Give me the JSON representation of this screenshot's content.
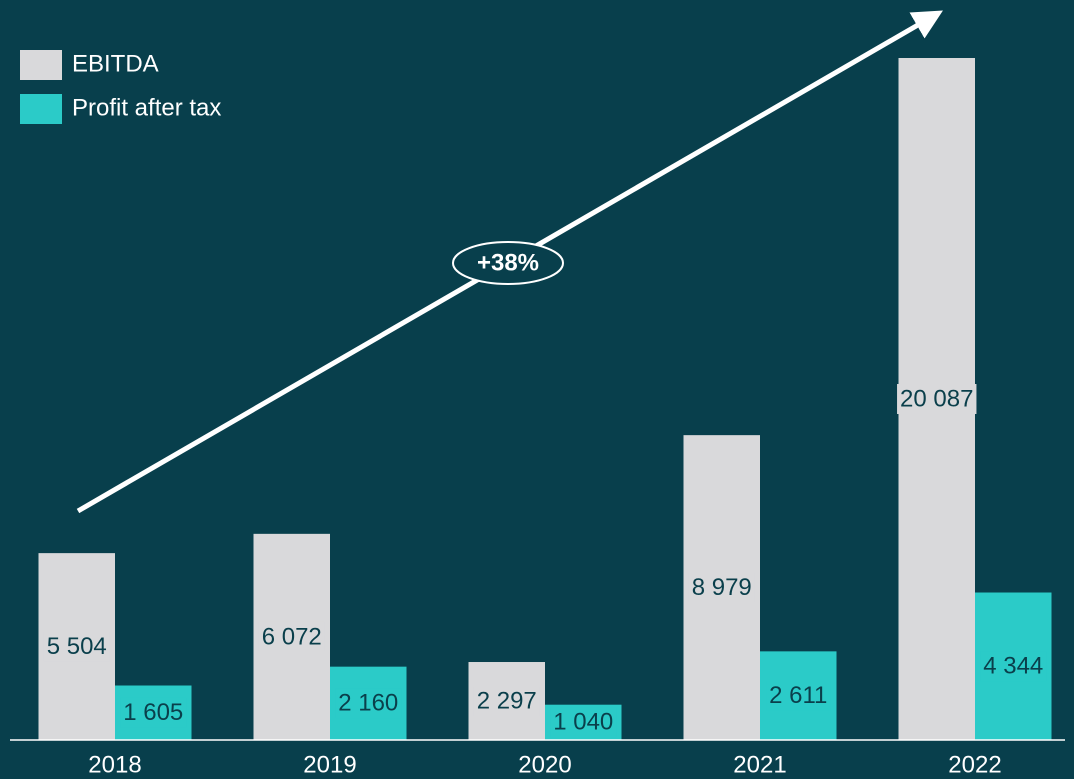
{
  "chart_data": {
    "type": "bar",
    "categories": [
      "2018",
      "2019",
      "2020",
      "2021",
      "2022"
    ],
    "series": [
      {
        "name": "EBITDA",
        "color": "#d9d9db",
        "values": [
          5504,
          6072,
          2297,
          8979,
          20087
        ],
        "value_labels": [
          "5 504",
          "6 072",
          "2 297",
          "8 979",
          "20 087"
        ]
      },
      {
        "name": "Profit after tax",
        "color": "#2bcbc8",
        "values": [
          1605,
          2160,
          1040,
          2611,
          4344
        ],
        "value_labels": [
          "1 605",
          "2 160",
          "1 040",
          "2 611",
          "4 344"
        ]
      }
    ],
    "annotation": "+38%",
    "legend": "top-left"
  }
}
